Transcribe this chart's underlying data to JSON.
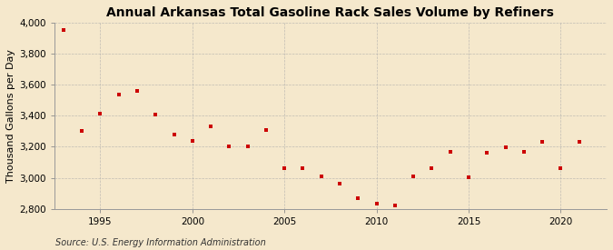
{
  "title": "Annual Arkansas Total Gasoline Rack Sales Volume by Refiners",
  "ylabel": "Thousand Gallons per Day",
  "source": "Source: U.S. Energy Information Administration",
  "background_color": "#f5e8cc",
  "plot_background_color": "#f5e8cc",
  "marker_color": "#cc0000",
  "years": [
    1993,
    1994,
    1995,
    1996,
    1997,
    1998,
    1999,
    2000,
    2001,
    2002,
    2003,
    2004,
    2005,
    2006,
    2007,
    2008,
    2009,
    2010,
    2011,
    2012,
    2013,
    2014,
    2015,
    2016,
    2017,
    2018,
    2019,
    2020,
    2021
  ],
  "values": [
    3950,
    3305,
    3415,
    3535,
    3560,
    3405,
    3280,
    3240,
    3330,
    3205,
    3200,
    3310,
    3060,
    3065,
    3010,
    2960,
    2870,
    2835,
    2820,
    3010,
    3060,
    3170,
    3005,
    3160,
    3195,
    3165,
    3235,
    3065,
    3230
  ],
  "xlim": [
    1992.5,
    2022.5
  ],
  "ylim": [
    2800,
    4000
  ],
  "yticks": [
    2800,
    3000,
    3200,
    3400,
    3600,
    3800,
    4000
  ],
  "ytick_labels": [
    "2,800",
    "3,000",
    "3,200",
    "3,400",
    "3,600",
    "3,800",
    "4,000"
  ],
  "xticks": [
    1995,
    2000,
    2005,
    2010,
    2015,
    2020
  ],
  "grid_color": "#aaaaaa",
  "title_fontsize": 10,
  "label_fontsize": 8,
  "tick_fontsize": 7.5,
  "source_fontsize": 7
}
